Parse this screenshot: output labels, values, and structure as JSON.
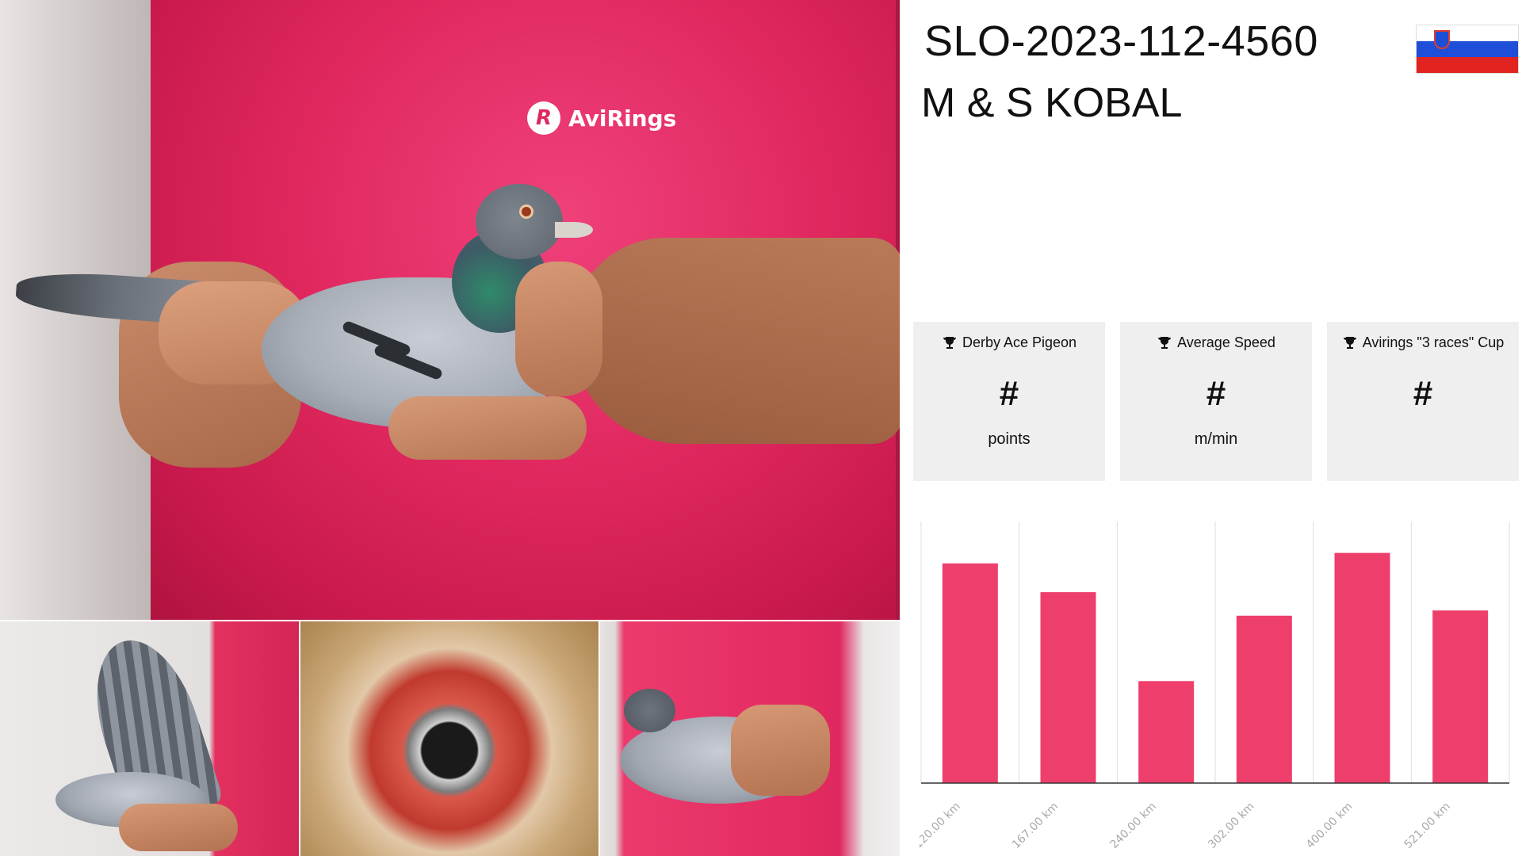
{
  "header": {
    "ring_number": "SLO-2023-112-4560",
    "owner": "M & S KOBAL",
    "flag": {
      "country": "Slovenia",
      "colors": [
        "#ffffff",
        "#1f4fd8",
        "#e3231f"
      ]
    }
  },
  "photos": {
    "main_logo_text": "AviRings",
    "main_logo_mark": "R"
  },
  "stats": [
    {
      "icon": "trophy-icon",
      "title": "Derby Ace Pigeon",
      "value": "#",
      "unit": "points"
    },
    {
      "icon": "trophy-icon",
      "title": "Average Speed",
      "value": "#",
      "unit": "m/min"
    },
    {
      "icon": "trophy-icon",
      "title": "Avirings \"3 races\" Cup",
      "value": "#",
      "unit": ""
    }
  ],
  "colors": {
    "bar": "#ee3f6c",
    "card_bg": "#efefef",
    "tick_text": "#a9a9a9",
    "grid": "#dddddd",
    "axis": "#333333"
  },
  "chart_data": {
    "type": "bar",
    "categories": [
      "120.00 km",
      "167.00 km",
      "240.00 km",
      "302.00 km",
      "400.00 km",
      "521.00 km"
    ],
    "values": [
      84,
      73,
      39,
      64,
      88,
      66
    ],
    "ylim": [
      0,
      100
    ],
    "title": "",
    "xlabel": "",
    "ylabel": "",
    "grid": "vertical",
    "legend": "none"
  }
}
